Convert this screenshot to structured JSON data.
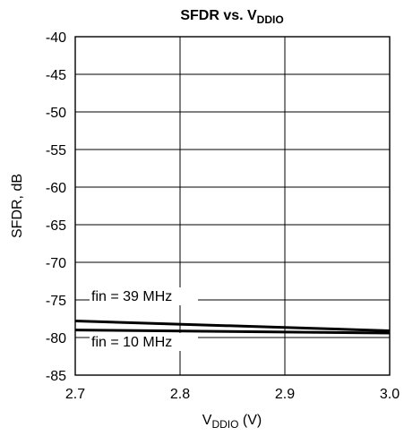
{
  "chart_data": {
    "type": "line",
    "title": {
      "main": "SFDR vs. V",
      "subscript": "DDIO"
    },
    "xlabel": {
      "main": "V",
      "subscript": "DDIO",
      "suffix": " (V)"
    },
    "ylabel": "SFDR, dB",
    "xlim": [
      2.7,
      3.0
    ],
    "ylim": [
      -85,
      -40
    ],
    "x_ticks": [
      "2.7",
      "2.8",
      "2.9",
      "3.0"
    ],
    "y_ticks": [
      "-40",
      "-45",
      "-50",
      "-55",
      "-60",
      "-65",
      "-70",
      "-75",
      "-80",
      "-85"
    ],
    "grid": true,
    "series": [
      {
        "name": "fin = 39 MHz",
        "x": [
          2.7,
          3.0
        ],
        "y": [
          -77.8,
          -79.1
        ]
      },
      {
        "name": "fin = 10 MHz",
        "x": [
          2.7,
          3.0
        ],
        "y": [
          -79.0,
          -79.4
        ]
      }
    ]
  }
}
